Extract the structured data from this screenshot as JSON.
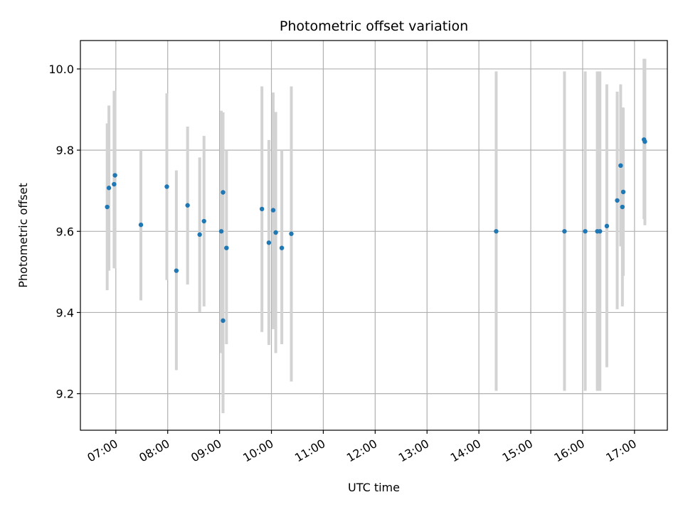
{
  "chart_data": {
    "type": "scatter",
    "title": "Photometric offset variation",
    "xlabel": "UTC time",
    "ylabel": "Photometric offset",
    "xlim": [
      "06:19",
      "17:38"
    ],
    "ylim": [
      9.11,
      10.07
    ],
    "x_ticks": [
      "07:00",
      "08:00",
      "09:00",
      "10:00",
      "11:00",
      "12:00",
      "13:00",
      "14:00",
      "15:00",
      "16:00",
      "17:00"
    ],
    "y_ticks": [
      9.2,
      9.4,
      9.6,
      9.8,
      10.0
    ],
    "y_tick_labels": [
      "9.2",
      "9.4",
      "9.6",
      "9.8",
      "10.0"
    ],
    "grid": true,
    "colors": {
      "points": "#1f77b4",
      "errorbars": "#d3d3d3",
      "grid": "#b0b0b0"
    },
    "series": [
      {
        "points": [
          {
            "x": "06:50",
            "y": 9.66,
            "low": 9.455,
            "high": 9.866
          },
          {
            "x": "06:52",
            "y": 9.707,
            "low": 9.503,
            "high": 9.91
          },
          {
            "x": "06:58",
            "y": 9.716,
            "low": 9.509,
            "high": 9.946
          },
          {
            "x": "06:59",
            "y": 9.738,
            "low": 9.509,
            "high": 9.946
          },
          {
            "x": "07:29",
            "y": 9.616,
            "low": 9.43,
            "high": 9.802
          },
          {
            "x": "07:59",
            "y": 9.71,
            "low": 9.48,
            "high": 9.94
          },
          {
            "x": "08:10",
            "y": 9.503,
            "low": 9.258,
            "high": 9.75
          },
          {
            "x": "08:23",
            "y": 9.664,
            "low": 9.469,
            "high": 9.858
          },
          {
            "x": "08:37",
            "y": 9.592,
            "low": 9.401,
            "high": 9.782
          },
          {
            "x": "08:42",
            "y": 9.625,
            "low": 9.415,
            "high": 9.835
          },
          {
            "x": "09:02",
            "y": 9.6,
            "low": 9.3,
            "high": 9.897
          },
          {
            "x": "09:04",
            "y": 9.696,
            "low": 9.152,
            "high": 9.893
          },
          {
            "x": "09:04",
            "y": 9.38,
            "low": 9.152,
            "high": 9.893
          },
          {
            "x": "09:08",
            "y": 9.559,
            "low": 9.322,
            "high": 9.8
          },
          {
            "x": "09:49",
            "y": 9.655,
            "low": 9.352,
            "high": 9.957
          },
          {
            "x": "09:57",
            "y": 9.572,
            "low": 9.32,
            "high": 9.825
          },
          {
            "x": "10:02",
            "y": 9.652,
            "low": 9.359,
            "high": 9.942
          },
          {
            "x": "10:05",
            "y": 9.597,
            "low": 9.3,
            "high": 9.894
          },
          {
            "x": "10:12",
            "y": 9.559,
            "low": 9.322,
            "high": 9.8
          },
          {
            "x": "10:23",
            "y": 9.594,
            "low": 9.23,
            "high": 9.957
          },
          {
            "x": "14:20",
            "y": 9.6,
            "low": 9.207,
            "high": 9.994
          },
          {
            "x": "15:39",
            "y": 9.6,
            "low": 9.207,
            "high": 9.994
          },
          {
            "x": "16:03",
            "y": 9.6,
            "low": 9.207,
            "high": 9.994
          },
          {
            "x": "16:17",
            "y": 9.6,
            "low": 9.207,
            "high": 9.994
          },
          {
            "x": "16:20",
            "y": 9.6,
            "low": 9.207,
            "high": 9.994
          },
          {
            "x": "16:28",
            "y": 9.613,
            "low": 9.265,
            "high": 9.962
          },
          {
            "x": "16:40",
            "y": 9.676,
            "low": 9.408,
            "high": 9.944
          },
          {
            "x": "16:44",
            "y": 9.762,
            "low": 9.563,
            "high": 9.962
          },
          {
            "x": "16:46",
            "y": 9.66,
            "low": 9.415,
            "high": 9.905
          },
          {
            "x": "16:47",
            "y": 9.697,
            "low": 9.49,
            "high": 9.905
          },
          {
            "x": "17:11",
            "y": 9.826,
            "low": 9.63,
            "high": 10.025
          },
          {
            "x": "17:12",
            "y": 9.821,
            "low": 9.615,
            "high": 10.025
          }
        ]
      }
    ]
  }
}
